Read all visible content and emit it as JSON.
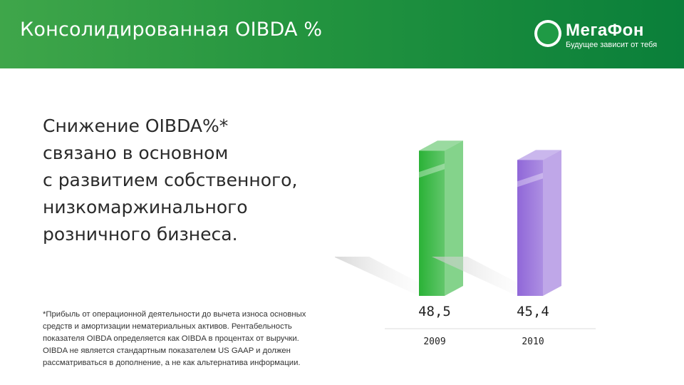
{
  "header": {
    "title": "Консолидированная OIBDA %"
  },
  "logo": {
    "name": "МегаФон",
    "tagline": "Будущее зависит от тебя",
    "icon": "megafon-logo-icon"
  },
  "main_text": [
    "Снижение OIBDA%*",
    "связано в основном",
    "с развитием собственного,",
    "низкомаржинального",
    "розничного бизнеса."
  ],
  "footnote": [
    "*Прибыль от операционной деятельности до вычета износа основных",
    "средств и амортизации нематериальных активов. Рентабельность",
    "показателя OIBDA определяется как OIBDA в процентах от выручки.",
    "OIBDA не является стандартным показателем US GAAP и должен",
    "рассматриваться в дополнение, а не как альтернатива информации."
  ],
  "colors": {
    "header_start": "#3fa64a",
    "header_end": "#0a7f3a",
    "bar_2009": "#1fae2c",
    "bar_2010": "#8a5fd6"
  },
  "chart_data": {
    "type": "bar",
    "categories": [
      "2009",
      "2010"
    ],
    "values": [
      48.5,
      45.4
    ],
    "value_labels": [
      "48,5",
      "45,4"
    ],
    "ylim": [
      0,
      50
    ],
    "colors": [
      "#1fae2c",
      "#8a5fd6"
    ]
  }
}
